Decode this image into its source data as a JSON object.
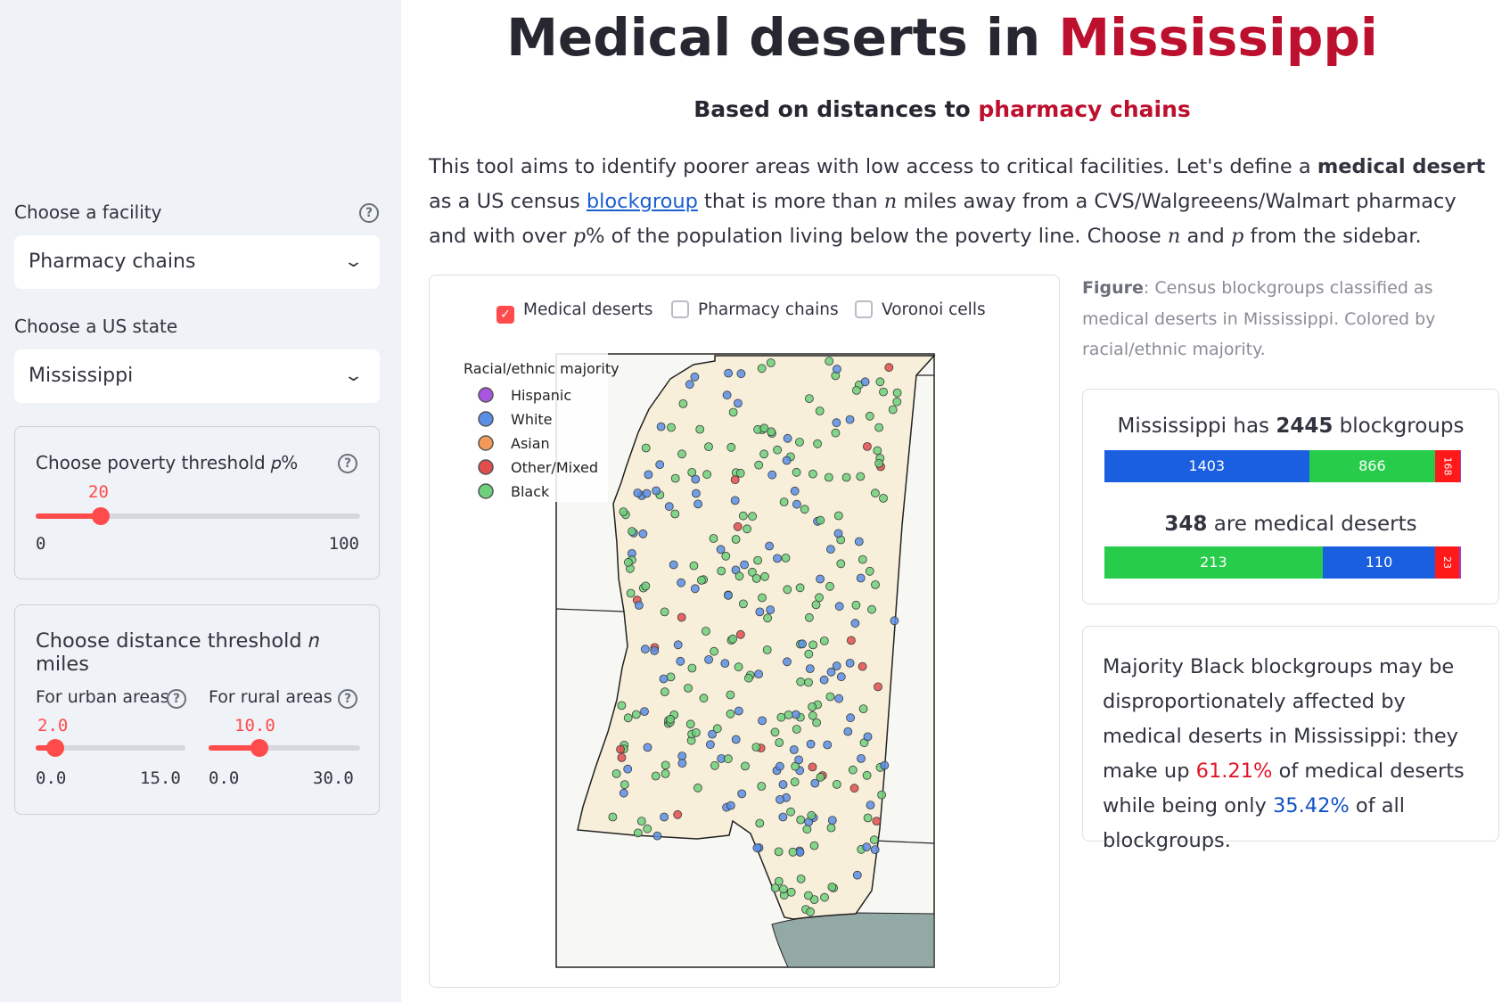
{
  "sidebar": {
    "facility_label": "Choose a facility",
    "facility_value": "Pharmacy chains",
    "state_label": "Choose a US state",
    "state_value": "Mississippi",
    "poverty_label": "Choose poverty threshold 𝑝%",
    "poverty_value": "20",
    "poverty_min": "0",
    "poverty_max": "100",
    "poverty_fraction": 0.2,
    "distance_label": "Choose distance threshold 𝑛 miles",
    "urban_label": "For urban areas",
    "urban_value": "2.0",
    "urban_min": "0.0",
    "urban_max": "15.0",
    "urban_fraction": 0.1333,
    "rural_label": "For rural areas",
    "rural_value": "10.0",
    "rural_min": "0.0",
    "rural_max": "30.0",
    "rural_fraction": 0.3333,
    "help_icon": "?",
    "chevron_icon": "chevron-down-icon"
  },
  "header": {
    "title_prefix": "Medical deserts in ",
    "title_state": "Mississippi",
    "subtitle_prefix": "Based on distances to ",
    "subtitle_facility": "pharmacy chains"
  },
  "intro": {
    "p1": "This tool aims to identify poorer areas with low access to critical facilities. Let's define a ",
    "bold": "medical desert",
    "p2": " as a US census ",
    "link": "blockgroup",
    "p3": " that is more than ",
    "n": "𝑛",
    "p4": " miles away from a CVS/Walgreeens/Walmart pharmacy and with over ",
    "p": "𝑝",
    "p5": "% of the population living below the poverty line. Choose ",
    "n2": "𝑛",
    "p6": " and ",
    "p2var": "𝑝",
    "p7": " from the sidebar."
  },
  "map": {
    "checkboxes": [
      {
        "label": "Medical deserts",
        "checked": true
      },
      {
        "label": "Pharmacy chains",
        "checked": false
      },
      {
        "label": "Voronoi cells",
        "checked": false
      }
    ],
    "legend_title": "Racial/ethnic majority",
    "legend": [
      {
        "label": "Hispanic",
        "color": "#a855e0"
      },
      {
        "label": "White",
        "color": "#5b8ee6"
      },
      {
        "label": "Asian",
        "color": "#f49a56"
      },
      {
        "label": "Other/Mixed",
        "color": "#e24d4d"
      },
      {
        "label": "Black",
        "color": "#6fd07b"
      }
    ],
    "state_fill": "#f7efd9",
    "gulf_fill": "#93a9a5"
  },
  "caption": {
    "bold": "Figure",
    "text": ": Census blockgroups classified as medical deserts in Mississippi. Colored by racial/ethnic majority."
  },
  "stats": {
    "total_prefix": "Mississippi has ",
    "total": "2445",
    "total_suffix": " blockgroups",
    "total_bar": [
      {
        "label": "1403",
        "value": 1403,
        "color": "#1a5fe0"
      },
      {
        "label": "866",
        "value": 866,
        "color": "#26cc4a"
      },
      {
        "label": "168",
        "value": 168,
        "color": "#ff1a1a"
      },
      {
        "label": "",
        "value": 8,
        "color": "#9b3ed6"
      }
    ],
    "deserts": "348",
    "deserts_suffix": " are medical deserts",
    "desert_bar": [
      {
        "label": "213",
        "value": 213,
        "color": "#26cc4a"
      },
      {
        "label": "110",
        "value": 110,
        "color": "#1a5fe0"
      },
      {
        "label": "23",
        "value": 23,
        "color": "#ff1a1a"
      },
      {
        "label": "",
        "value": 2,
        "color": "#9b3ed6"
      }
    ]
  },
  "finding": {
    "t1": "Majority Black blockgroups may be disproportionately affected by medical deserts in Mississippi: they make up ",
    "pct1": "61.21%",
    "t2": " of medical deserts while being only ",
    "pct2": "35.42%",
    "t3": " of all blockgroups."
  }
}
